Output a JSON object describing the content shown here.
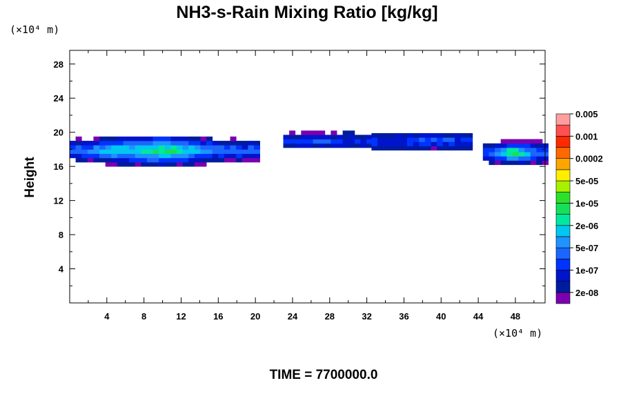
{
  "chart_data": {
    "type": "heatmap",
    "title": "NH3-s-Rain Mixing Ratio [kg/kg]",
    "ylabel": "Height",
    "x_unit": "(×10⁴ m)",
    "y_unit": "(×10⁴ m)",
    "footer": "TIME = 7700000.0",
    "xlim": [
      0,
      51.2
    ],
    "ylim": [
      0,
      29.6
    ],
    "x_ticks": [
      4,
      8,
      12,
      16,
      20,
      24,
      28,
      32,
      36,
      40,
      44,
      48
    ],
    "y_ticks": [
      4,
      8,
      12,
      16,
      20,
      24,
      28
    ],
    "colorbar": {
      "colors": [
        "#7a00b0",
        "#001c9e",
        "#0014cc",
        "#0033ff",
        "#1a66ff",
        "#1f93ff",
        "#00c8f0",
        "#00e8a0",
        "#16e05a",
        "#2ee02a",
        "#a6f000",
        "#ffee00",
        "#ffa500",
        "#ff6a00",
        "#ff2a00",
        "#ff5050",
        "#ff9e9e"
      ],
      "labels": [
        "2e-08",
        "1e-07",
        "5e-07",
        "2e-06",
        "1e-05",
        "5e-05",
        "0.0002",
        "0.001",
        "0.005"
      ]
    },
    "blobs": [
      {
        "x": [
          0,
          20.0
        ],
        "y": [
          16.0,
          19.5
        ],
        "mean_y": 17.9,
        "max_level": 8
      },
      {
        "x": [
          23.0,
          32.0
        ],
        "y": [
          18.2,
          19.8
        ],
        "mean_y": 19.0,
        "max_level": 5
      },
      {
        "x": [
          32.5,
          43.0
        ],
        "y": [
          17.9,
          19.8
        ],
        "mean_y": 19.0,
        "max_level": 5
      },
      {
        "x": [
          44.5,
          51.2
        ],
        "y": [
          16.2,
          18.8
        ],
        "mean_y": 17.6,
        "max_level": 8
      }
    ]
  }
}
